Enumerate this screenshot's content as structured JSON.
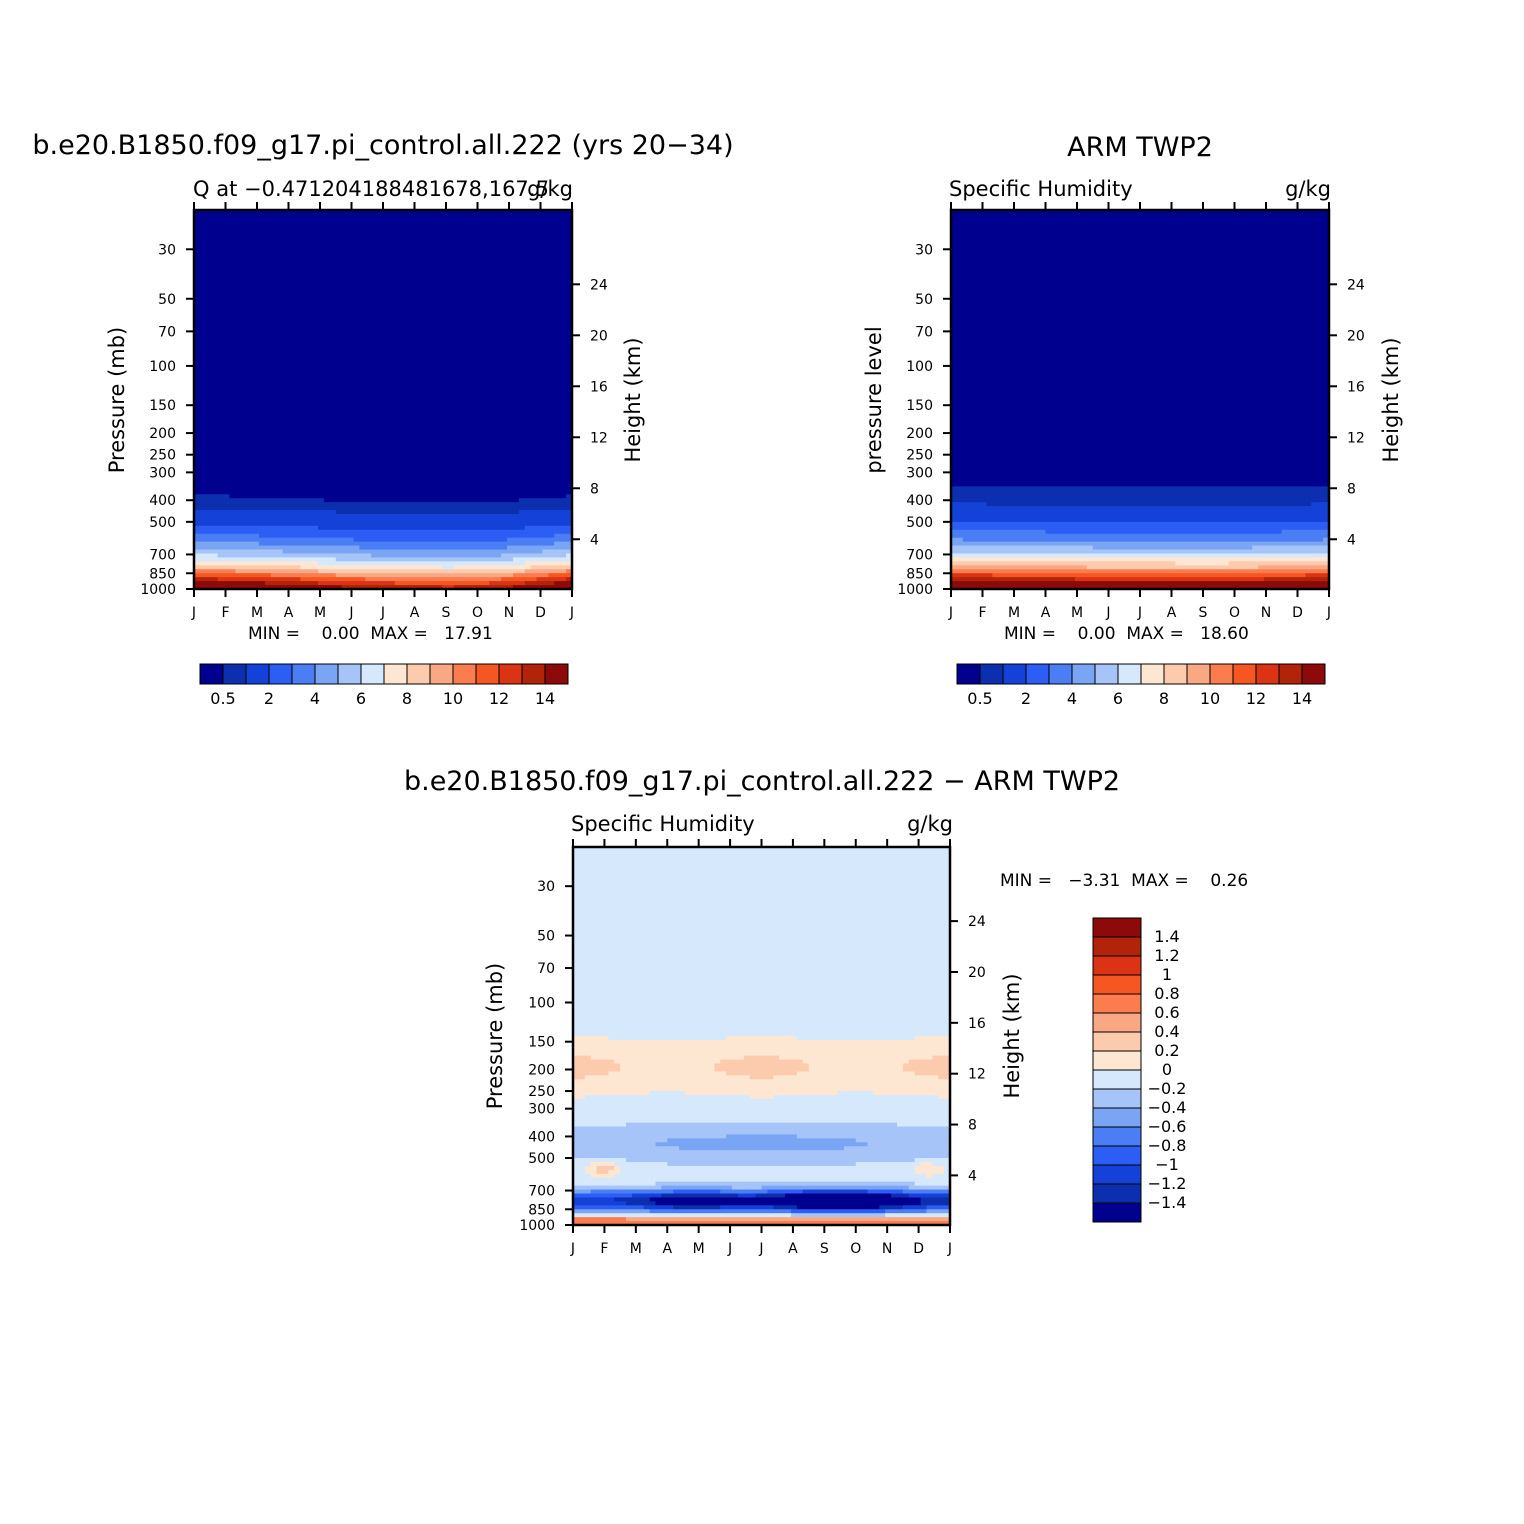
{
  "chart_data": [
    {
      "type": "heatmap",
      "title": "b.e20.B1850.f09_g17.pi_control.all.222 (yrs 20−34)",
      "subtitle_left": "Q at −0.471204188481678,167.5",
      "subtitle_right": "g/kg",
      "ylabel": "Pressure (mb)",
      "ylabel_right": "Height (km)",
      "x_ticks": [
        "J",
        "F",
        "M",
        "A",
        "M",
        "J",
        "J",
        "A",
        "S",
        "O",
        "N",
        "D",
        "J"
      ],
      "y_ticks": [
        30,
        50,
        70,
        100,
        150,
        200,
        250,
        300,
        400,
        500,
        700,
        850,
        1000
      ],
      "y_right_ticks": [
        24,
        20,
        16,
        12,
        8,
        4
      ],
      "stats": "MIN =    0.00  MAX =   17.91",
      "levels": [
        0.5,
        1,
        2,
        3,
        4,
        5,
        6,
        7,
        8,
        9,
        10,
        11,
        12,
        13,
        14
      ],
      "colorbar_labels": [
        "0.5",
        "2",
        "4",
        "6",
        "8",
        "10",
        "12",
        "14"
      ],
      "colors": [
        "#00008f",
        "#0b2fae",
        "#1442d9",
        "#2c5df5",
        "#4b7ef5",
        "#7aa5f5",
        "#a6c4f7",
        "#d5e8fc",
        "#fde7d2",
        "#fccaad",
        "#f9a883",
        "#fb7c4e",
        "#f55622",
        "#db3414",
        "#b12409",
        "#8c0a09"
      ],
      "profile_month": [
        {
          "p": 30,
          "v": 0.002
        },
        {
          "p": 100,
          "v": 0.003
        },
        {
          "p": 200,
          "v": 0.02
        },
        {
          "p": 300,
          "v": 0.12
        },
        {
          "p": 400,
          "v": 0.55
        },
        {
          "p": 500,
          "v": 1.6
        },
        {
          "p": 600,
          "v": 3.4
        },
        {
          "p": 700,
          "v": 5.6
        },
        {
          "p": 800,
          "v": 8.5
        },
        {
          "p": 850,
          "v": 10.5
        },
        {
          "p": 925,
          "v": 13.5
        },
        {
          "p": 1000,
          "v": 16.5
        }
      ],
      "monthly_scale": [
        1.03,
        1.02,
        1.0,
        0.97,
        0.93,
        0.9,
        0.88,
        0.86,
        0.85,
        0.86,
        0.9,
        0.97,
        1.03
      ]
    },
    {
      "type": "heatmap",
      "title": "ARM TWP2",
      "subtitle_left": "Specific Humidity",
      "subtitle_right": "g/kg",
      "ylabel": "pressure level",
      "ylabel_right": "Height (km)",
      "x_ticks": [
        "J",
        "F",
        "M",
        "A",
        "M",
        "J",
        "J",
        "A",
        "S",
        "O",
        "N",
        "D",
        "J"
      ],
      "y_ticks": [
        30,
        50,
        70,
        100,
        150,
        200,
        250,
        300,
        400,
        500,
        700,
        850,
        1000
      ],
      "y_right_ticks": [
        24,
        20,
        16,
        12,
        8,
        4
      ],
      "stats": "MIN =    0.00  MAX =   18.60",
      "levels": [
        0.5,
        1,
        2,
        3,
        4,
        5,
        6,
        7,
        8,
        9,
        10,
        11,
        12,
        13,
        14
      ],
      "colorbar_labels": [
        "0.5",
        "2",
        "4",
        "6",
        "8",
        "10",
        "12",
        "14"
      ],
      "profile_month": [
        {
          "p": 30,
          "v": 0.002
        },
        {
          "p": 100,
          "v": 0.003
        },
        {
          "p": 200,
          "v": 0.03
        },
        {
          "p": 300,
          "v": 0.2
        },
        {
          "p": 400,
          "v": 0.8
        },
        {
          "p": 500,
          "v": 2.0
        },
        {
          "p": 600,
          "v": 4.0
        },
        {
          "p": 700,
          "v": 6.4
        },
        {
          "p": 800,
          "v": 9.5
        },
        {
          "p": 850,
          "v": 11.5
        },
        {
          "p": 925,
          "v": 14.5
        },
        {
          "p": 1000,
          "v": 17.5
        }
      ],
      "monthly_scale": [
        1.0,
        0.99,
        0.98,
        0.97,
        0.96,
        0.95,
        0.95,
        0.95,
        0.94,
        0.95,
        0.96,
        0.98,
        1.0
      ]
    },
    {
      "type": "heatmap",
      "title": "b.e20.B1850.f09_g17.pi_control.all.222 − ARM TWP2",
      "subtitle_left": "Specific Humidity",
      "subtitle_right": "g/kg",
      "ylabel": "Pressure (mb)",
      "ylabel_right": "Height (km)",
      "x_ticks": [
        "J",
        "F",
        "M",
        "A",
        "M",
        "J",
        "J",
        "A",
        "S",
        "O",
        "N",
        "D",
        "J"
      ],
      "y_ticks": [
        30,
        50,
        70,
        100,
        150,
        200,
        250,
        300,
        400,
        500,
        700,
        850,
        1000
      ],
      "y_right_ticks": [
        24,
        20,
        16,
        12,
        8,
        4
      ],
      "stats": "MIN =   −3.31  MAX =    0.26",
      "levels": [
        -1.4,
        -1.2,
        -1,
        -0.8,
        -0.6,
        -0.4,
        -0.2,
        0,
        0.2,
        0.4,
        0.6,
        0.8,
        1,
        1.2,
        1.4
      ],
      "colorbar_labels": [
        "1.4",
        "1.2",
        "1",
        "0.8",
        "0.6",
        "0.4",
        "0.2",
        "0",
        "−0.2",
        "−0.4",
        "−0.6",
        "−0.8",
        "−1",
        "−1.2",
        "−1.4"
      ],
      "colors": [
        "#00008f",
        "#0b2fae",
        "#1442d9",
        "#2c5df5",
        "#4b7ef5",
        "#7aa5f5",
        "#a6c4f7",
        "#d5e8fc",
        "#fde7d2",
        "#fccaad",
        "#f9a883",
        "#fb7c4e",
        "#f55622",
        "#db3414",
        "#b12409",
        "#8c0a09"
      ]
    }
  ]
}
